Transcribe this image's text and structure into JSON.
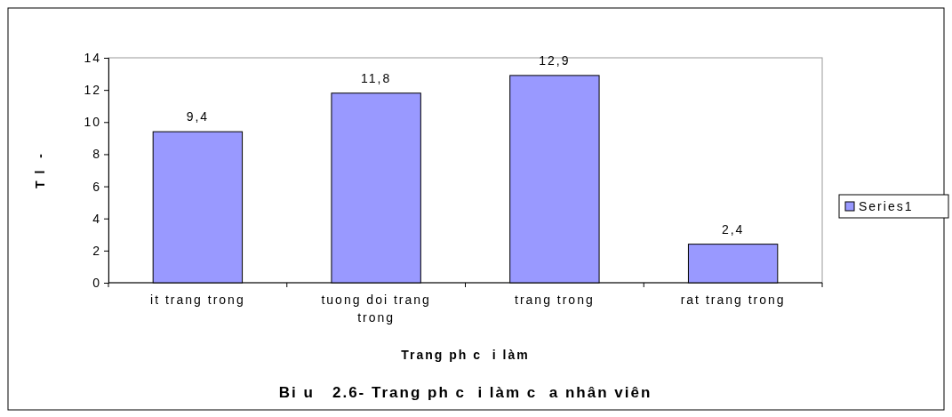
{
  "chart_data": {
    "type": "bar",
    "title": "Bi u   2.6- Trang ph c  i làm c  a nhân viên",
    "xlabel": "Trang ph c  i làm",
    "ylabel": "T l  -",
    "categories": [
      "it trang trong",
      "tuong doi trang trong",
      "trang trong",
      "rat trang trong"
    ],
    "series": [
      {
        "name": "Series1",
        "color": "#9999ff",
        "values": [
          9.4,
          11.8,
          12.9,
          2.4
        ],
        "value_labels": [
          "9,4",
          "11,8",
          "12,9",
          "2,4"
        ]
      }
    ],
    "ylim": [
      0,
      14
    ],
    "yticks": [
      0,
      2,
      4,
      6,
      8,
      10,
      12,
      14
    ],
    "grid": false,
    "legend": "right"
  }
}
